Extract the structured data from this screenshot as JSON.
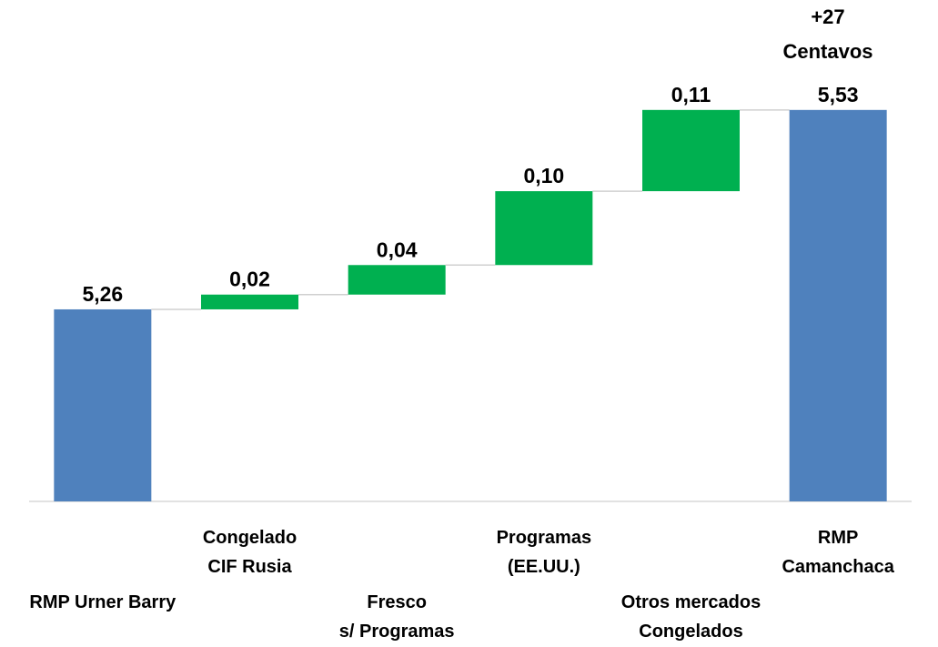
{
  "chart_data": {
    "type": "waterfall",
    "categories": [
      "RMP Urner Barry",
      "Congelado\nCIF Rusia",
      "Fresco\ns/ Programas",
      "Programas\n(EE.UU.)",
      "Otros mercados\nCongelados",
      "RMP Camanchaca"
    ],
    "values": [
      5.26,
      0.02,
      0.04,
      0.1,
      0.11,
      5.53
    ],
    "value_labels": [
      "5,26",
      "0,02",
      "0,04",
      "0,10",
      "0,11",
      "5,53"
    ],
    "totals": [
      true,
      false,
      false,
      false,
      false,
      true
    ],
    "total_color": "#4f81bd",
    "increase_color": "#00b050",
    "annotation": "+27\nCentavos",
    "ylim": [
      5.0,
      5.6
    ]
  }
}
